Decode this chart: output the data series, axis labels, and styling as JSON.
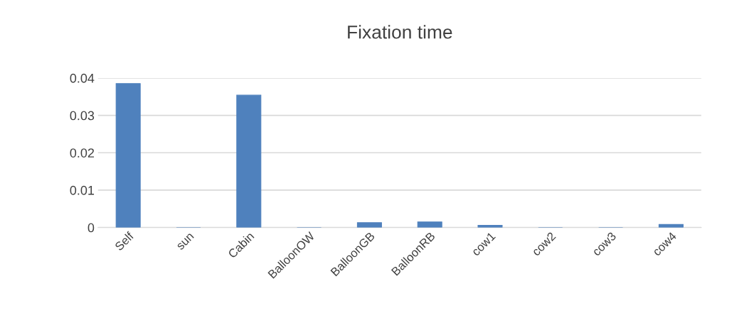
{
  "chart_data": {
    "type": "bar",
    "title": "Fixation time",
    "categories": [
      "Self",
      "sun",
      "Cabin",
      "BalloonOW",
      "BalloonGB",
      "BalloonRB",
      "cow1",
      "cow2",
      "cow3",
      "cow4"
    ],
    "values": [
      0.0385,
      0,
      0.0354,
      0,
      0.0013,
      0.0015,
      0.0006,
      0,
      0,
      0.0008
    ],
    "color": "#4f81bd",
    "ylim": [
      0,
      0.04
    ],
    "yticks": [
      0,
      0.01,
      0.02,
      0.03,
      0.04
    ],
    "grid": "y"
  }
}
